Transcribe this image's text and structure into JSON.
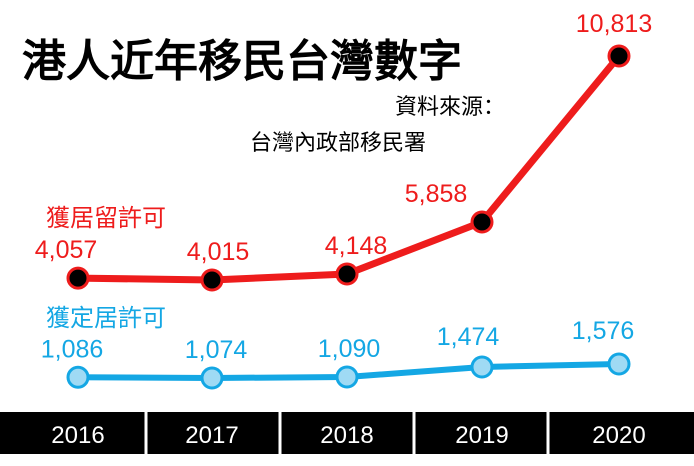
{
  "colors": {
    "series_red": "#ee1c1c",
    "series_blue": "#14a7e4",
    "point_red_fill": "#000000",
    "point_blue_fill": "#9fdaf4",
    "axis_bar": "#000000",
    "tick_text": "#ffffff"
  },
  "chart_data": {
    "type": "line",
    "title": "港人近年移民台灣數字",
    "source_line1": "資料來源：",
    "source_line2": "台灣內政部移民署",
    "categories": [
      "2016",
      "2017",
      "2018",
      "2019",
      "2020"
    ],
    "series": [
      {
        "name": "獲居留許可",
        "values": [
          4057,
          4015,
          4148,
          5858,
          10813
        ],
        "labels": [
          "4,057",
          "4,015",
          "4,148",
          "5,858",
          "10,813"
        ]
      },
      {
        "name": "獲定居許可",
        "values": [
          1086,
          1074,
          1090,
          1474,
          1576
        ],
        "labels": [
          "1,086",
          "1,074",
          "1,090",
          "1,474",
          "1,576"
        ]
      }
    ],
    "grid": false,
    "legend": "inline"
  }
}
